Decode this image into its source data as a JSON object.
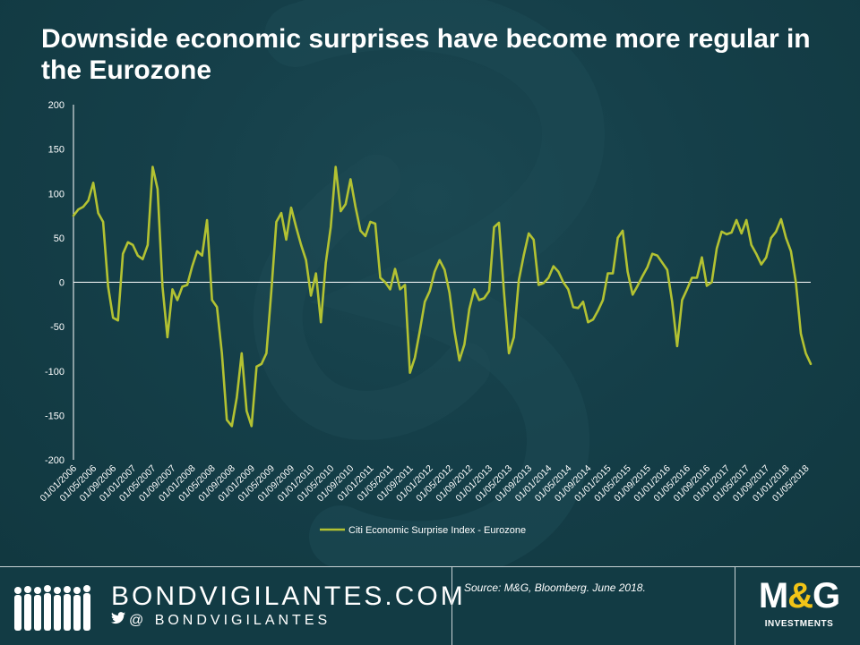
{
  "title": "Downside economic surprises have become more regular in the Eurozone",
  "chart_data": {
    "type": "line",
    "title": "Downside economic surprises have become more regular in the Eurozone",
    "xlabel": "",
    "ylabel": "",
    "ylim": [
      -200,
      200
    ],
    "yticks": [
      200,
      150,
      100,
      50,
      0,
      -50,
      -100,
      -150,
      -200
    ],
    "grid": false,
    "legend_position": "bottom-center",
    "x_tick_labels": [
      "01/01/2006",
      "01/05/2006",
      "01/09/2006",
      "01/01/2007",
      "01/05/2007",
      "01/09/2007",
      "01/01/2008",
      "01/05/2008",
      "01/09/2008",
      "01/01/2009",
      "01/05/2009",
      "01/09/2009",
      "01/01/2010",
      "01/05/2010",
      "01/09/2010",
      "01/01/2011",
      "01/05/2011",
      "01/09/2011",
      "01/01/2012",
      "01/05/2012",
      "01/09/2012",
      "01/01/2013",
      "01/05/2013",
      "01/09/2013",
      "01/01/2014",
      "01/05/2014",
      "01/09/2014",
      "01/01/2015",
      "01/05/2015",
      "01/09/2015",
      "01/01/2016",
      "01/05/2016",
      "01/09/2016",
      "01/01/2017",
      "01/05/2017",
      "01/09/2017",
      "01/01/2018",
      "01/05/2018"
    ],
    "x_start": "2006-01",
    "x_end": "2018-06",
    "series": [
      {
        "name": "Citi Economic Surprise Index - Eurozone",
        "color": "#b3c232",
        "values": [
          75,
          82,
          85,
          92,
          112,
          78,
          68,
          -5,
          -40,
          -43,
          32,
          45,
          42,
          30,
          26,
          42,
          130,
          105,
          -5,
          -62,
          -8,
          -20,
          -5,
          -3,
          18,
          35,
          30,
          70,
          -20,
          -28,
          -80,
          -155,
          -162,
          -130,
          -80,
          -145,
          -162,
          -95,
          -92,
          -80,
          -10,
          68,
          78,
          48,
          84,
          62,
          42,
          25,
          -15,
          10,
          -45,
          22,
          62,
          130,
          80,
          88,
          116,
          85,
          58,
          52,
          68,
          66,
          5,
          0,
          -8,
          15,
          -8,
          -3,
          -102,
          -85,
          -55,
          -22,
          -10,
          12,
          25,
          14,
          -12,
          -55,
          -88,
          -70,
          -30,
          -8,
          -20,
          -18,
          -10,
          62,
          67,
          -10,
          -80,
          -62,
          2,
          30,
          55,
          48,
          -3,
          -1,
          5,
          18,
          12,
          0,
          -8,
          -28,
          -29,
          -22,
          -45,
          -42,
          -32,
          -20,
          10,
          10,
          50,
          58,
          12,
          -14,
          -4,
          7,
          17,
          32,
          30,
          22,
          14,
          -22,
          -72,
          -20,
          -8,
          5,
          5,
          28,
          -4,
          0,
          38,
          57,
          54,
          56,
          70,
          55,
          70,
          42,
          32,
          20,
          28,
          50,
          57,
          71,
          50,
          35,
          0,
          -58,
          -80,
          -92
        ]
      }
    ]
  },
  "footer": {
    "brand": "BONDVIGILANTES.COM",
    "handle": "@ BONDVIGILANTES",
    "handle_icon": "twitter-bird-icon",
    "source": "Source: M&G, Bloomberg. June 2018.",
    "logo": "M&G",
    "logo_sub": "INVESTMENTS"
  },
  "colors": {
    "background": "#153f49",
    "line": "#b3c232",
    "axis": "#ffffff",
    "logo_ampersand": "#f2c417"
  }
}
